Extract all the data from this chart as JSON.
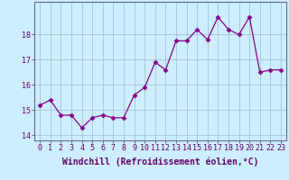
{
  "x": [
    0,
    1,
    2,
    3,
    4,
    5,
    6,
    7,
    8,
    9,
    10,
    11,
    12,
    13,
    14,
    15,
    16,
    17,
    18,
    19,
    20,
    21,
    22,
    23
  ],
  "y": [
    15.2,
    15.4,
    14.8,
    14.8,
    14.3,
    14.7,
    14.8,
    14.7,
    14.7,
    15.6,
    15.9,
    16.9,
    16.6,
    17.75,
    17.75,
    18.2,
    17.8,
    18.7,
    18.2,
    18.0,
    18.7,
    16.5,
    16.6,
    16.6
  ],
  "line_color": "#880088",
  "marker": "D",
  "marker_size": 2.5,
  "background_color": "#cceeff",
  "grid_color": "#99bbcc",
  "xlabel": "Windchill (Refroidissement éolien,°C)",
  "xlabel_fontsize": 7,
  "xlabel_color": "#660066",
  "ylim": [
    13.8,
    19.3
  ],
  "xlim": [
    -0.5,
    23.5
  ],
  "yticks": [
    14,
    15,
    16,
    17,
    18
  ],
  "xticks": [
    0,
    1,
    2,
    3,
    4,
    5,
    6,
    7,
    8,
    9,
    10,
    11,
    12,
    13,
    14,
    15,
    16,
    17,
    18,
    19,
    20,
    21,
    22,
    23
  ],
  "tick_fontsize": 6,
  "tick_color": "#660066",
  "spine_color": "#666699"
}
